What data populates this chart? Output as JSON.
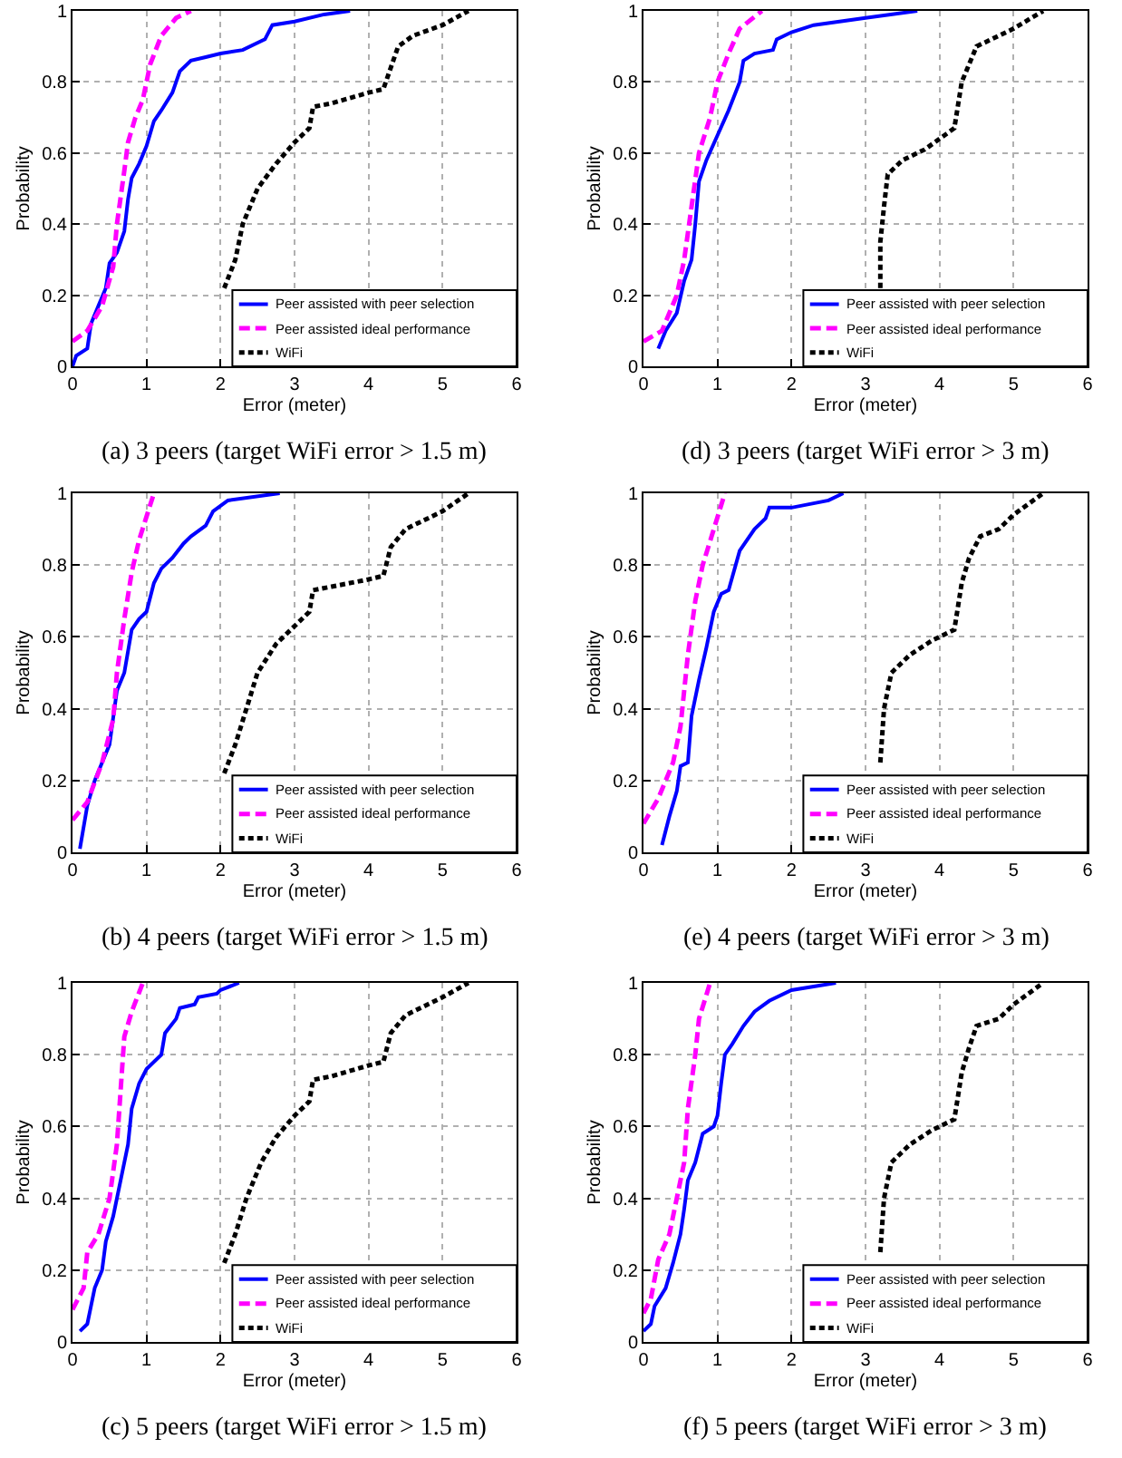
{
  "chart_data": [
    {
      "type": "line",
      "title": "(a) 3 peers (target WiFi error > 1.5 m)",
      "xlabel": "Error (meter)",
      "ylabel": "Probability",
      "xlim": [
        0,
        6
      ],
      "ylim": [
        0,
        1
      ],
      "xticks": [
        0,
        1,
        2,
        3,
        4,
        5,
        6
      ],
      "yticks": [
        0,
        0.2,
        0.4,
        0.6,
        0.8,
        1
      ],
      "grid": true,
      "legend": "bottom right",
      "series": [
        {
          "name": "Peer assisted with peer selection",
          "color": "#0000ff",
          "line_style": "solid",
          "x": [
            0,
            0.05,
            0.2,
            0.25,
            0.35,
            0.45,
            0.5,
            0.6,
            0.7,
            0.75,
            0.8,
            0.9,
            1.0,
            1.1,
            1.2,
            1.35,
            1.45,
            1.6,
            1.8,
            2.0,
            2.3,
            2.6,
            2.7,
            3.0,
            3.4,
            3.75
          ],
          "values": [
            0,
            0.03,
            0.05,
            0.12,
            0.17,
            0.22,
            0.29,
            0.32,
            0.38,
            0.47,
            0.53,
            0.57,
            0.62,
            0.69,
            0.72,
            0.77,
            0.83,
            0.86,
            0.87,
            0.88,
            0.89,
            0.92,
            0.96,
            0.97,
            0.99,
            1
          ]
        },
        {
          "name": "Peer assisted ideal performance",
          "color": "#ff00ff",
          "line_style": "dashed",
          "x": [
            0,
            0.2,
            0.4,
            0.55,
            0.6,
            0.7,
            0.75,
            0.85,
            0.95,
            1.0,
            1.05,
            1.2,
            1.4,
            1.6
          ],
          "values": [
            0.07,
            0.1,
            0.17,
            0.28,
            0.4,
            0.55,
            0.63,
            0.7,
            0.75,
            0.8,
            0.85,
            0.93,
            0.98,
            1
          ]
        },
        {
          "name": "WiFi",
          "color": "#000000",
          "line_style": "dotted",
          "x": [
            2.05,
            2.2,
            2.3,
            2.5,
            2.75,
            3.0,
            3.2,
            3.25,
            3.5,
            4.0,
            4.2,
            4.3,
            4.4,
            4.6,
            5.0,
            5.35
          ],
          "values": [
            0.22,
            0.3,
            0.4,
            0.5,
            0.57,
            0.63,
            0.67,
            0.73,
            0.74,
            0.77,
            0.78,
            0.84,
            0.9,
            0.93,
            0.96,
            1
          ]
        }
      ]
    },
    {
      "type": "line",
      "title": "(d) 3 peers (target WiFi error > 3 m)",
      "xlabel": "Error (meter)",
      "ylabel": "Probability",
      "xlim": [
        0,
        6
      ],
      "ylim": [
        0,
        1
      ],
      "xticks": [
        0,
        1,
        2,
        3,
        4,
        5,
        6
      ],
      "yticks": [
        0,
        0.2,
        0.4,
        0.6,
        0.8,
        1
      ],
      "grid": true,
      "legend": "bottom right",
      "series": [
        {
          "name": "Peer assisted with peer selection",
          "color": "#0000ff",
          "line_style": "solid",
          "x": [
            0.2,
            0.3,
            0.45,
            0.55,
            0.65,
            0.7,
            0.75,
            0.85,
            1.0,
            1.15,
            1.3,
            1.35,
            1.5,
            1.75,
            1.8,
            2.0,
            2.3,
            3.0,
            3.7
          ],
          "values": [
            0.05,
            0.1,
            0.15,
            0.24,
            0.3,
            0.4,
            0.52,
            0.58,
            0.65,
            0.72,
            0.8,
            0.86,
            0.88,
            0.89,
            0.92,
            0.94,
            0.96,
            0.98,
            1
          ]
        },
        {
          "name": "Peer assisted ideal performance",
          "color": "#ff00ff",
          "line_style": "dashed",
          "x": [
            0,
            0.25,
            0.45,
            0.55,
            0.65,
            0.75,
            0.9,
            1.0,
            1.15,
            1.3,
            1.6
          ],
          "values": [
            0.07,
            0.1,
            0.2,
            0.3,
            0.45,
            0.6,
            0.7,
            0.8,
            0.88,
            0.95,
            1
          ]
        },
        {
          "name": "WiFi",
          "color": "#000000",
          "line_style": "dotted",
          "x": [
            3.2,
            3.2,
            3.25,
            3.3,
            3.5,
            3.8,
            4.2,
            4.3,
            4.5,
            4.7,
            5.0,
            5.4
          ],
          "values": [
            0.22,
            0.35,
            0.45,
            0.54,
            0.58,
            0.61,
            0.67,
            0.8,
            0.9,
            0.92,
            0.95,
            1
          ]
        }
      ]
    },
    {
      "type": "line",
      "title": "(b) 4 peers (target WiFi error > 1.5 m)",
      "xlabel": "Error (meter)",
      "ylabel": "Probability",
      "xlim": [
        0,
        6
      ],
      "ylim": [
        0,
        1
      ],
      "xticks": [
        0,
        1,
        2,
        3,
        4,
        5,
        6
      ],
      "yticks": [
        0,
        0.2,
        0.4,
        0.6,
        0.8,
        1
      ],
      "grid": true,
      "legend": "bottom right",
      "series": [
        {
          "name": "Peer assisted with peer selection",
          "color": "#0000ff",
          "line_style": "solid",
          "x": [
            0.1,
            0.2,
            0.3,
            0.4,
            0.5,
            0.6,
            0.7,
            0.8,
            0.9,
            1.0,
            1.1,
            1.2,
            1.35,
            1.5,
            1.6,
            1.8,
            1.9,
            2.1,
            2.8
          ],
          "values": [
            0.01,
            0.13,
            0.2,
            0.25,
            0.3,
            0.45,
            0.5,
            0.62,
            0.65,
            0.67,
            0.75,
            0.79,
            0.82,
            0.86,
            0.88,
            0.91,
            0.95,
            0.98,
            1
          ]
        },
        {
          "name": "Peer assisted ideal performance",
          "color": "#ff00ff",
          "line_style": "dashed",
          "x": [
            0,
            0.2,
            0.4,
            0.55,
            0.6,
            0.7,
            0.8,
            0.9,
            1.1
          ],
          "values": [
            0.09,
            0.14,
            0.25,
            0.37,
            0.5,
            0.65,
            0.78,
            0.87,
            1
          ]
        },
        {
          "name": "WiFi",
          "color": "#000000",
          "line_style": "dotted",
          "x": [
            2.05,
            2.2,
            2.35,
            2.5,
            2.75,
            3.0,
            3.2,
            3.25,
            3.5,
            4.0,
            4.2,
            4.3,
            4.5,
            4.7,
            5.0,
            5.35
          ],
          "values": [
            0.22,
            0.3,
            0.4,
            0.5,
            0.58,
            0.63,
            0.67,
            0.73,
            0.74,
            0.76,
            0.77,
            0.85,
            0.9,
            0.92,
            0.95,
            1
          ]
        }
      ]
    },
    {
      "type": "line",
      "title": "(e) 4 peers (target WiFi error > 3 m)",
      "xlabel": "Error (meter)",
      "ylabel": "Probability",
      "xlim": [
        0,
        6
      ],
      "ylim": [
        0,
        1
      ],
      "xticks": [
        0,
        1,
        2,
        3,
        4,
        5,
        6
      ],
      "yticks": [
        0,
        0.2,
        0.4,
        0.6,
        0.8,
        1
      ],
      "grid": true,
      "legend": "bottom right",
      "series": [
        {
          "name": "Peer assisted with peer selection",
          "color": "#0000ff",
          "line_style": "solid",
          "x": [
            0.25,
            0.35,
            0.45,
            0.5,
            0.6,
            0.65,
            0.75,
            0.85,
            0.95,
            1.05,
            1.15,
            1.3,
            1.5,
            1.65,
            1.7,
            2.0,
            2.5,
            2.7
          ],
          "values": [
            0.02,
            0.1,
            0.17,
            0.24,
            0.25,
            0.38,
            0.48,
            0.57,
            0.67,
            0.72,
            0.73,
            0.84,
            0.9,
            0.93,
            0.96,
            0.96,
            0.98,
            1
          ]
        },
        {
          "name": "Peer assisted ideal performance",
          "color": "#ff00ff",
          "line_style": "dashed",
          "x": [
            0,
            0.2,
            0.4,
            0.5,
            0.6,
            0.7,
            0.8,
            0.95,
            1.1
          ],
          "values": [
            0.08,
            0.15,
            0.25,
            0.35,
            0.55,
            0.7,
            0.8,
            0.9,
            1
          ]
        },
        {
          "name": "WiFi",
          "color": "#000000",
          "line_style": "dotted",
          "x": [
            3.2,
            3.25,
            3.35,
            3.6,
            3.9,
            4.2,
            4.3,
            4.4,
            4.55,
            4.8,
            5.0,
            5.4
          ],
          "values": [
            0.25,
            0.4,
            0.5,
            0.55,
            0.59,
            0.62,
            0.75,
            0.82,
            0.88,
            0.9,
            0.94,
            1
          ]
        }
      ]
    },
    {
      "type": "line",
      "title": "(c) 5 peers (target WiFi error > 1.5 m)",
      "xlabel": "Error (meter)",
      "ylabel": "Probability",
      "xlim": [
        0,
        6
      ],
      "ylim": [
        0,
        1
      ],
      "xticks": [
        0,
        1,
        2,
        3,
        4,
        5,
        6
      ],
      "yticks": [
        0,
        0.2,
        0.4,
        0.6,
        0.8,
        1
      ],
      "grid": true,
      "legend": "bottom right",
      "series": [
        {
          "name": "Peer assisted with peer selection",
          "color": "#0000ff",
          "line_style": "solid",
          "x": [
            0.1,
            0.2,
            0.25,
            0.3,
            0.4,
            0.45,
            0.55,
            0.65,
            0.75,
            0.8,
            0.9,
            1.0,
            1.2,
            1.25,
            1.4,
            1.45,
            1.65,
            1.7,
            1.95,
            2.0,
            2.25
          ],
          "values": [
            0.03,
            0.05,
            0.1,
            0.15,
            0.2,
            0.28,
            0.35,
            0.45,
            0.55,
            0.65,
            0.72,
            0.76,
            0.8,
            0.86,
            0.9,
            0.93,
            0.94,
            0.96,
            0.97,
            0.98,
            1
          ]
        },
        {
          "name": "Peer assisted ideal performance",
          "color": "#ff00ff",
          "line_style": "dashed",
          "x": [
            0,
            0.15,
            0.2,
            0.35,
            0.5,
            0.6,
            0.65,
            0.7,
            0.8,
            0.95
          ],
          "values": [
            0.09,
            0.15,
            0.25,
            0.3,
            0.4,
            0.55,
            0.7,
            0.85,
            0.92,
            1
          ]
        },
        {
          "name": "WiFi",
          "color": "#000000",
          "line_style": "dotted",
          "x": [
            2.05,
            2.2,
            2.35,
            2.55,
            2.75,
            3.0,
            3.2,
            3.25,
            3.5,
            4.0,
            4.2,
            4.3,
            4.5,
            4.7,
            5.0,
            5.35
          ],
          "values": [
            0.22,
            0.3,
            0.4,
            0.5,
            0.57,
            0.63,
            0.67,
            0.73,
            0.74,
            0.77,
            0.78,
            0.86,
            0.91,
            0.93,
            0.96,
            1
          ]
        }
      ]
    },
    {
      "type": "line",
      "title": "(f) 5 peers (target WiFi error > 3 m)",
      "xlabel": "Error (meter)",
      "ylabel": "Probability",
      "xlim": [
        0,
        6
      ],
      "ylim": [
        0,
        1
      ],
      "xticks": [
        0,
        1,
        2,
        3,
        4,
        5,
        6
      ],
      "yticks": [
        0,
        0.2,
        0.4,
        0.6,
        0.8,
        1
      ],
      "grid": true,
      "legend": "bottom right",
      "series": [
        {
          "name": "Peer assisted with peer selection",
          "color": "#0000ff",
          "line_style": "solid",
          "x": [
            0,
            0.1,
            0.15,
            0.3,
            0.4,
            0.5,
            0.55,
            0.6,
            0.7,
            0.8,
            0.95,
            1.0,
            1.05,
            1.1,
            1.2,
            1.35,
            1.5,
            1.7,
            2.0,
            2.6
          ],
          "values": [
            0.03,
            0.05,
            0.1,
            0.15,
            0.22,
            0.3,
            0.37,
            0.45,
            0.5,
            0.58,
            0.6,
            0.63,
            0.72,
            0.8,
            0.83,
            0.88,
            0.92,
            0.95,
            0.98,
            1
          ]
        },
        {
          "name": "Peer assisted ideal performance",
          "color": "#ff00ff",
          "line_style": "dashed",
          "x": [
            0,
            0.1,
            0.2,
            0.35,
            0.45,
            0.55,
            0.6,
            0.7,
            0.75,
            0.9
          ],
          "values": [
            0.08,
            0.12,
            0.23,
            0.3,
            0.4,
            0.5,
            0.65,
            0.8,
            0.9,
            1
          ]
        },
        {
          "name": "WiFi",
          "color": "#000000",
          "line_style": "dotted",
          "x": [
            3.2,
            3.25,
            3.35,
            3.6,
            3.9,
            4.2,
            4.3,
            4.4,
            4.5,
            4.8,
            5.0,
            5.4
          ],
          "values": [
            0.25,
            0.4,
            0.5,
            0.55,
            0.59,
            0.62,
            0.75,
            0.82,
            0.88,
            0.9,
            0.94,
            1
          ]
        }
      ]
    }
  ]
}
